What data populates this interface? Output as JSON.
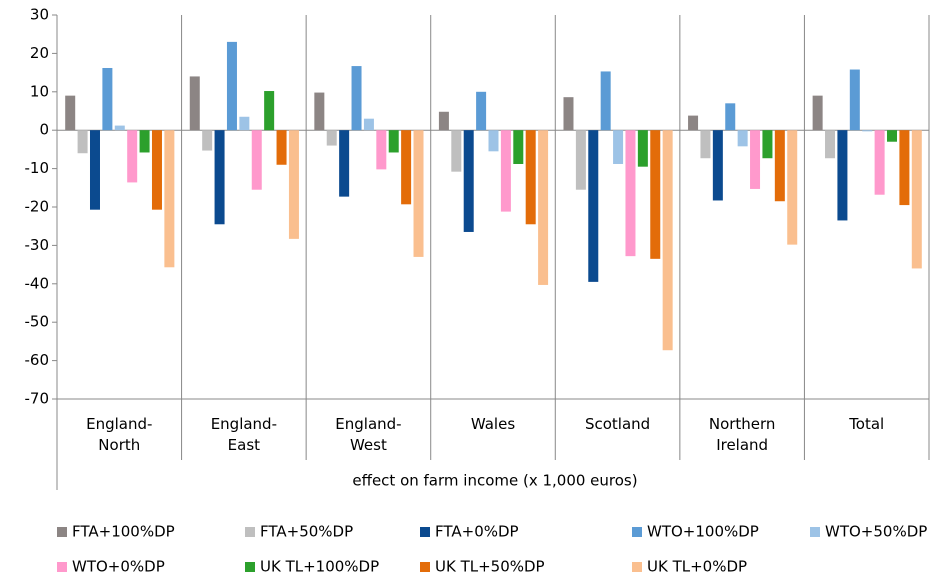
{
  "chart_data": {
    "type": "bar",
    "categories": [
      "England-\nNorth",
      "England-\nEast",
      "England-\nWest",
      "Wales",
      "Scotland",
      "Northern\nIreland",
      "Total"
    ],
    "x_label": "effect on farm income (x 1,000 euros)",
    "ylim": [
      -70,
      30
    ],
    "yticks": [
      -70,
      -60,
      -50,
      -40,
      -30,
      -20,
      -10,
      0,
      10,
      20,
      30
    ],
    "legend": "bottom",
    "series": [
      {
        "name": "FTA+100%DP",
        "color": "#8c8584",
        "values": [
          9,
          14,
          9.8,
          4.8,
          8.6,
          3.8,
          9
        ]
      },
      {
        "name": "FTA+50%DP",
        "color": "#bfbfbf",
        "values": [
          -6,
          -5.3,
          -4,
          -10.8,
          -15.5,
          -7.3,
          -7.3
        ]
      },
      {
        "name": "FTA+0%DP",
        "color": "#0b4a8f",
        "values": [
          -20.7,
          -24.5,
          -17.3,
          -26.5,
          -39.5,
          -18.3,
          -23.5
        ]
      },
      {
        "name": "WTO+100%DP",
        "color": "#5b9bd5",
        "values": [
          16.2,
          23,
          16.7,
          10,
          15.3,
          7,
          15.8
        ]
      },
      {
        "name": "WTO+50%DP",
        "color": "#9dc3e6",
        "values": [
          1.2,
          3.5,
          3,
          -5.5,
          -8.8,
          -4.2,
          -0.3
        ]
      },
      {
        "name": "WTO+0%DP",
        "color": "#ff99cc",
        "values": [
          -13.6,
          -15.5,
          -10.2,
          -21.2,
          -32.8,
          -15.3,
          -16.8
        ]
      },
      {
        "name": "UK TL+100%DP",
        "color": "#2ca02c",
        "values": [
          -5.8,
          10.2,
          -5.8,
          -8.8,
          -9.5,
          -7.3,
          -3
        ]
      },
      {
        "name": "UK TL+50%DP",
        "color": "#e36c09",
        "values": [
          -20.7,
          -9,
          -19.3,
          -24.5,
          -33.5,
          -18.5,
          -19.5
        ]
      },
      {
        "name": "UK TL+0%DP",
        "color": "#fabf8f",
        "values": [
          -35.7,
          -28.3,
          -33,
          -40.3,
          -57.3,
          -29.8,
          -36
        ]
      }
    ]
  }
}
